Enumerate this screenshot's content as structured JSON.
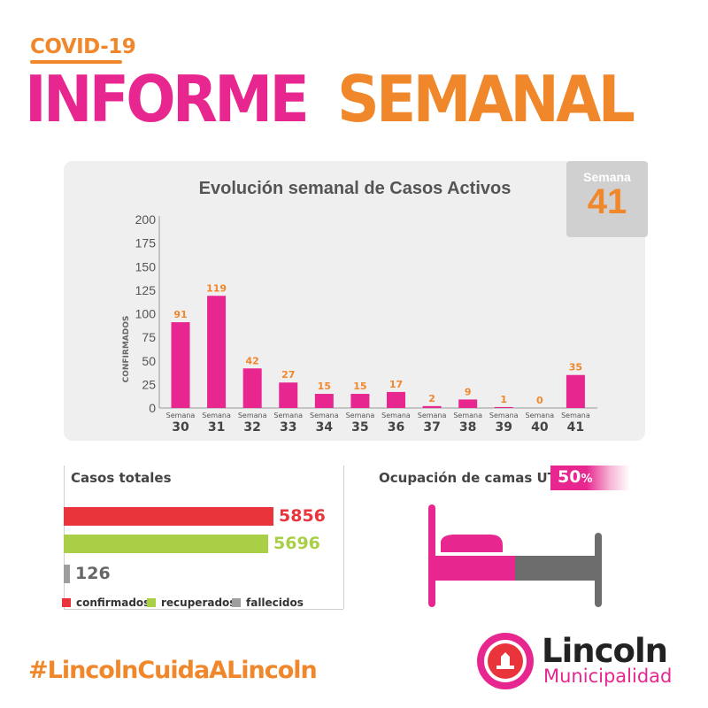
{
  "header": {
    "kicker": "COVID-19",
    "title_part1": "INFORME",
    "title_part2": "SEMANAL"
  },
  "week_badge": {
    "label": "Semana",
    "number": "41"
  },
  "chart_data": {
    "type": "bar",
    "title": "Evolución semanal de Casos Activos",
    "ylabel": "CONFIRMADOS",
    "xlabel": "",
    "category_prefix": "Semana",
    "categories": [
      "30",
      "31",
      "32",
      "33",
      "34",
      "35",
      "36",
      "37",
      "38",
      "39",
      "40",
      "41"
    ],
    "values": [
      91,
      119,
      42,
      27,
      15,
      15,
      17,
      2,
      9,
      1,
      0,
      35
    ],
    "ylim": [
      0,
      200
    ],
    "yticks": [
      0,
      25,
      50,
      75,
      100,
      125,
      150,
      175,
      200
    ],
    "grid": false,
    "colors": {
      "bar": "#e8268f",
      "label": "#f0872b",
      "axis": "#999999"
    }
  },
  "totals": {
    "title": "Casos totales",
    "items": [
      {
        "name": "confirmados",
        "value": 5856,
        "display": "5856",
        "color": "#e8343a"
      },
      {
        "name": "recuperados",
        "value": 5696,
        "display": "5696",
        "color": "#a8cf45"
      },
      {
        "name": "fallecidos",
        "value": 126,
        "display": "126",
        "color": "#9e9e9e"
      }
    ]
  },
  "icu": {
    "title": "Ocupación de camas UTI",
    "value": "50",
    "unit": "%",
    "fraction": 0.5,
    "colors": {
      "occupied": "#e8268f",
      "free": "#6d6d6d"
    }
  },
  "footer": {
    "hashtag": "#LincolnCuidaALincoln",
    "brand_name": "Lincoln",
    "brand_sub": "Municipalidad"
  }
}
